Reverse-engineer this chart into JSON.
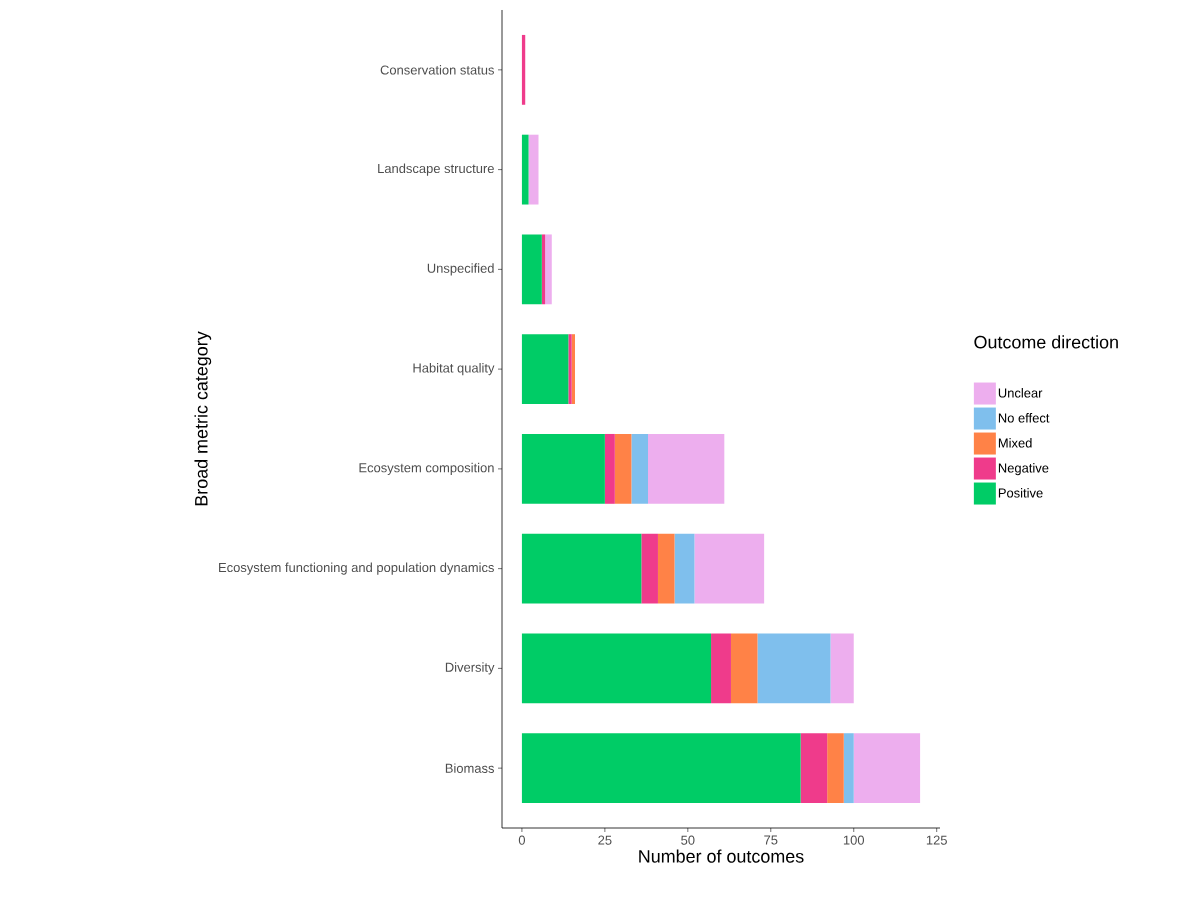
{
  "chart_data": {
    "type": "bar",
    "orientation": "horizontal",
    "stacked": true,
    "xlabel": "Number of outcomes",
    "ylabel": "Broad metric category",
    "legend_title": "Outcome direction",
    "categories": [
      "Conservation status",
      "Landscape structure",
      "Unspecified",
      "Habitat quality",
      "Ecosystem composition",
      "Ecosystem functioning and population dynamics",
      "Diversity",
      "Biomass"
    ],
    "series": [
      {
        "name": "Positive",
        "color": "#00cc66",
        "values": [
          0,
          2,
          6,
          14,
          25,
          36,
          57,
          84
        ]
      },
      {
        "name": "Negative",
        "color": "#ef3b8b",
        "values": [
          1,
          0,
          1,
          1,
          3,
          5,
          6,
          8
        ]
      },
      {
        "name": "Mixed",
        "color": "#ff8247",
        "values": [
          0,
          0,
          0,
          1,
          5,
          5,
          8,
          5
        ]
      },
      {
        "name": "No effect",
        "color": "#7fbfed",
        "values": [
          0,
          0,
          0,
          0,
          5,
          6,
          22,
          3
        ]
      },
      {
        "name": "Unclear",
        "color": "#edaeee",
        "values": [
          0,
          3,
          2,
          0,
          23,
          21,
          7,
          20
        ]
      }
    ],
    "xlim": [
      -6,
      126
    ],
    "xticks": [
      0,
      25,
      50,
      75,
      100,
      125
    ],
    "grid": false,
    "legend": "right"
  }
}
